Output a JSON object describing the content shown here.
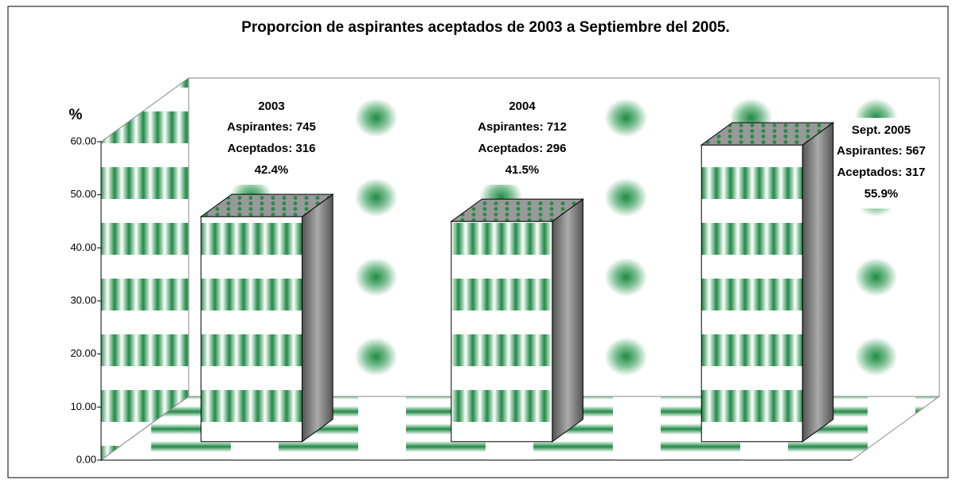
{
  "chart_data": {
    "type": "bar3d",
    "title": "Proporcion de aspirantes aceptados de 2003 a Septiembre del 2005.",
    "y_label": "%",
    "categories": [
      "2003",
      "2004",
      "Sept. 2005"
    ],
    "details": [
      [
        "Aspirantes: 745",
        "Aceptados: 316"
      ],
      [
        "Aspirantes: 712",
        "Aceptados: 296"
      ],
      [
        "Aspirantes: 567",
        "Aceptados: 317"
      ]
    ],
    "values": [
      42.4,
      41.5,
      55.9
    ],
    "value_labels": [
      "42.4%",
      "41.5%",
      "55.9%"
    ],
    "ylim": [
      0,
      60
    ],
    "yticks": [
      {
        "value": 0,
        "label": "0.00"
      },
      {
        "value": 10,
        "label": "10.00"
      },
      {
        "value": 20,
        "label": "20.00"
      },
      {
        "value": 30,
        "label": "30.00"
      },
      {
        "value": 40,
        "label": "40.00"
      },
      {
        "value": 50,
        "label": "50.00"
      },
      {
        "value": 60,
        "label": "60.00"
      }
    ],
    "color": "#1f8a45"
  }
}
